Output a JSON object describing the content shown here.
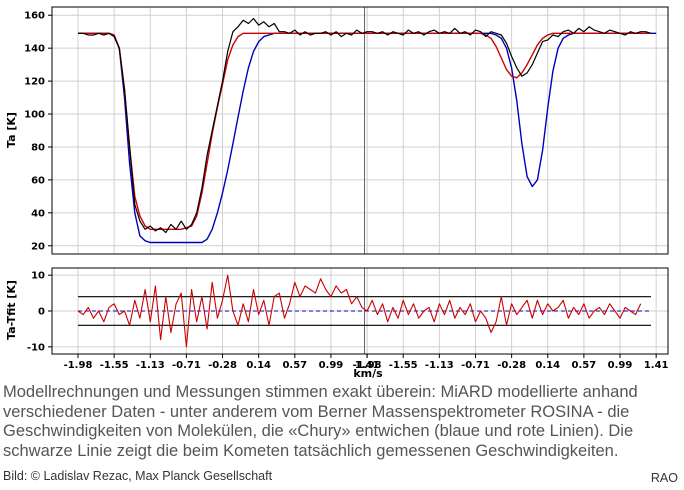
{
  "caption": "Modellrechnungen und Messungen stimmen exakt überein: MiARD modellierte anhand verschiedener Daten - unter anderem vom Berner Massenspektrometer ROSINA - die Geschwindigkeiten von Molekülen, die «Chury» entwichen (blaue und rote Linien). Die schwarze Linie zeigt die beim Kometen tatsächlich gemessenen Geschwindigkeiten.",
  "credit": "Bild: © Ladislav Rezac, Max Planck Gesellschaft",
  "logo_text": "RAO",
  "colors": {
    "measured": "#000000",
    "model_red": "#cc0000",
    "model_blue": "#0000bb",
    "grid": "#d0d0d0",
    "dashed_zero": "#0000bb"
  },
  "chart_data": {
    "type": "line",
    "xlabel": "km/s",
    "x_ticks": [
      "-1.98",
      "-1.55",
      "-1.13",
      "-0.71",
      "-0.28",
      "0.14",
      "0.57",
      "0.99",
      "1.41",
      "-1.98",
      "-1.55",
      "-1.13",
      "-0.71",
      "-0.28",
      "0.14",
      "0.57",
      "0.99",
      "1.41"
    ],
    "x_tick_note": "two concatenated spectra of 58 channels each; divider after channel 29",
    "top_panel": {
      "ylabel": "Ta [K]",
      "ylim": [
        15,
        165
      ],
      "yticks": [
        20,
        40,
        60,
        80,
        100,
        120,
        140,
        160
      ],
      "series": [
        {
          "key": "measured",
          "color": "#000000",
          "values": [
            149,
            149,
            148,
            148,
            149,
            148,
            149,
            147,
            140,
            115,
            80,
            45,
            35,
            30,
            32,
            29,
            31,
            28,
            33,
            30,
            35,
            30,
            33,
            40,
            55,
            75,
            90,
            105,
            120,
            138,
            150,
            153,
            157,
            155,
            158,
            154,
            156,
            153,
            155,
            150,
            150,
            149,
            151,
            148,
            150,
            148,
            149,
            149,
            150,
            148,
            150,
            147,
            149,
            148,
            151,
            149,
            150,
            150,
            149,
            150,
            148,
            150,
            149,
            148,
            151,
            149,
            150,
            148,
            150,
            151,
            149,
            150,
            149,
            152,
            149,
            150,
            148,
            151,
            150,
            147,
            150,
            149,
            148,
            143,
            135,
            128,
            123,
            125,
            130,
            137,
            144,
            145,
            148,
            147,
            150,
            151,
            149,
            152,
            150,
            153,
            151,
            150,
            149,
            151,
            150,
            149,
            148,
            150,
            149,
            150,
            150,
            149
          ]
        },
        {
          "key": "model_red",
          "color": "#cc0000",
          "values": [
            149,
            149,
            149,
            149,
            149,
            149,
            149,
            148,
            140,
            115,
            80,
            50,
            38,
            32,
            30,
            30,
            30,
            30,
            30,
            30,
            30,
            31,
            32,
            38,
            52,
            70,
            88,
            104,
            118,
            133,
            142,
            147,
            149,
            149,
            149,
            149,
            149,
            149,
            149,
            149,
            149,
            149,
            149,
            149,
            149,
            149,
            149,
            149,
            149,
            149,
            149,
            149,
            149,
            149,
            149,
            149,
            149,
            149,
            149,
            149,
            149,
            149,
            149,
            149,
            149,
            149,
            149,
            149,
            149,
            149,
            149,
            149,
            149,
            149,
            149,
            149,
            149,
            149,
            149,
            148,
            146,
            141,
            134,
            127,
            123,
            122,
            125,
            130,
            136,
            142,
            146,
            148,
            149,
            149,
            149,
            149,
            149,
            149,
            149,
            149,
            149,
            149,
            149,
            149,
            149,
            149,
            149,
            149,
            149,
            149,
            149,
            149
          ]
        },
        {
          "key": "model_blue",
          "color": "#0000bb",
          "values": [
            149,
            149,
            149,
            149,
            149,
            149,
            149,
            148,
            140,
            110,
            70,
            40,
            26,
            23,
            22,
            22,
            22,
            22,
            22,
            22,
            22,
            22,
            22,
            22,
            22,
            24,
            30,
            40,
            52,
            66,
            82,
            98,
            114,
            128,
            138,
            144,
            147,
            148,
            149,
            149,
            149,
            149,
            149,
            149,
            149,
            149,
            149,
            149,
            149,
            149,
            149,
            149,
            149,
            149,
            149,
            149,
            149,
            149,
            149,
            149,
            149,
            149,
            149,
            149,
            149,
            149,
            149,
            149,
            149,
            149,
            149,
            149,
            149,
            149,
            149,
            149,
            149,
            149,
            149,
            149,
            149,
            148,
            146,
            140,
            128,
            108,
            82,
            62,
            56,
            60,
            78,
            104,
            126,
            140,
            146,
            148,
            149,
            149,
            149,
            149,
            149,
            149,
            149,
            149,
            149,
            149,
            149,
            149,
            149,
            149,
            149,
            149,
            149
          ]
        }
      ]
    },
    "bottom_panel": {
      "ylabel": "Ta-Tfit [K]",
      "ylim": [
        -12,
        12
      ],
      "yticks": [
        -10,
        0,
        10
      ],
      "hlines": [
        4,
        -4
      ],
      "zero_line": 0,
      "series": [
        {
          "key": "residual",
          "color": "#cc0000",
          "values": [
            0,
            -1,
            1,
            -2,
            0,
            -3,
            1,
            2,
            -1,
            0,
            -4,
            3,
            -2,
            6,
            -3,
            7,
            -8,
            4,
            -6,
            2,
            5,
            -10,
            6,
            -3,
            4,
            -5,
            8,
            -2,
            3,
            10,
            0,
            -4,
            2,
            -3,
            6,
            -1,
            3,
            -4,
            4,
            5,
            -2,
            2,
            8,
            4,
            7,
            6,
            5,
            9,
            6,
            4,
            7,
            5,
            6,
            2,
            4,
            1,
            0,
            3,
            -1,
            2,
            -3,
            1,
            -2,
            3,
            -1,
            2,
            -2,
            0,
            1,
            -3,
            2,
            -1,
            3,
            -2,
            1,
            -1,
            2,
            -3,
            0,
            -2,
            -6,
            -3,
            4,
            -4,
            2,
            -1,
            1,
            3,
            -2,
            3,
            -1,
            2,
            0,
            1,
            3,
            -2,
            1,
            -1,
            2,
            -2,
            0,
            1,
            -1,
            2,
            0,
            -2,
            1,
            0,
            -1,
            2
          ]
        }
      ]
    }
  }
}
